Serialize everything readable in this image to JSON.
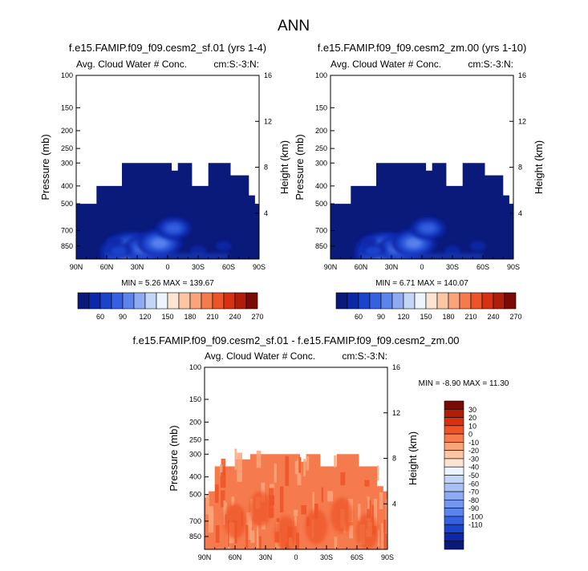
{
  "figure_title": "ANN",
  "colors": {
    "seq": [
      "#0a1a7a",
      "#0c27a8",
      "#1a44cc",
      "#3560e0",
      "#5c84ec",
      "#8eaaf2",
      "#c4d6f8",
      "#edf4fc",
      "#fde4d2",
      "#fcc6a2",
      "#faa47a",
      "#f57a4e",
      "#ee5428",
      "#d83010",
      "#b01e0a",
      "#7a0a05"
    ],
    "diff": [
      "#7a0a05",
      "#b01e0a",
      "#d83010",
      "#ee5428",
      "#f57a4e",
      "#faa47a",
      "#fcc6a2",
      "#fde4d2",
      "#edf4fc",
      "#c4d6f8",
      "#a8c0f4",
      "#8eaaf2",
      "#7596ee",
      "#5c84ec",
      "#3560e0",
      "#1a44cc",
      "#0c27a8",
      "#0a1a7a"
    ]
  },
  "chart_data": [
    {
      "type": "heatmap",
      "title": "f.e15.FAMIP.f09_f09.cesm2_sf.01 (yrs 1-4)",
      "left_string": "Avg. Cloud Water # Conc.",
      "right_string": "cm:S:-3:N:",
      "xlabel": "",
      "ylabel": "Pressure (mb)",
      "ylabel_right": "Height (km)",
      "x_ticks": [
        "90N",
        "60N",
        "30N",
        "0",
        "30S",
        "60S",
        "90S"
      ],
      "x_range": [
        90,
        -90
      ],
      "y_ticks": [
        100,
        150,
        200,
        250,
        300,
        400,
        500,
        700,
        850
      ],
      "y_range": [
        100,
        1000
      ],
      "y_scale": "log",
      "y_right_ticks": [
        4,
        8,
        12,
        16
      ],
      "stats": "MIN =   5.26   MAX = 139.67",
      "colorbar_labels": [
        "60",
        "90",
        "120",
        "150",
        "180",
        "210",
        "240",
        "270"
      ],
      "domain_outline": [
        [
          90,
          500
        ],
        [
          70,
          500
        ],
        [
          70,
          400
        ],
        [
          45,
          400
        ],
        [
          45,
          300
        ],
        [
          -4,
          300
        ],
        [
          -4,
          330
        ],
        [
          -10,
          330
        ],
        [
          -10,
          300
        ],
        [
          -24,
          300
        ],
        [
          -24,
          400
        ],
        [
          -40,
          400
        ],
        [
          -40,
          300
        ],
        [
          -62,
          300
        ],
        [
          -62,
          350
        ],
        [
          -80,
          350
        ],
        [
          -80,
          450
        ],
        [
          -86,
          450
        ],
        [
          -86,
          500
        ],
        [
          -90,
          500
        ],
        [
          -90,
          1000
        ],
        [
          90,
          1000
        ]
      ],
      "features": [
        {
          "lat": 35,
          "p": 920,
          "value": 125
        },
        {
          "lat": 22,
          "p": 880,
          "value": 100
        },
        {
          "lat": 8,
          "p": 820,
          "value": 95
        },
        {
          "lat": 48,
          "p": 900,
          "value": 70
        },
        {
          "lat": 52,
          "p": 800,
          "value": 55
        },
        {
          "lat": -6,
          "p": 680,
          "value": 85
        },
        {
          "lat": -30,
          "p": 900,
          "value": 60
        },
        {
          "lat": -55,
          "p": 850,
          "value": 45
        }
      ]
    },
    {
      "type": "heatmap",
      "title": "f.e15.FAMIP.f09_f09.cesm2_zm.00 (yrs 1-10)",
      "left_string": "Avg. Cloud Water # Conc.",
      "right_string": "cm:S:-3:N:",
      "xlabel": "",
      "ylabel": "Pressure (mb)",
      "ylabel_right": "Height (km)",
      "x_ticks": [
        "90N",
        "60N",
        "30N",
        "0",
        "30S",
        "60S",
        "90S"
      ],
      "x_range": [
        90,
        -90
      ],
      "y_ticks": [
        100,
        150,
        200,
        250,
        300,
        400,
        500,
        700,
        850
      ],
      "y_range": [
        100,
        1000
      ],
      "y_scale": "log",
      "y_right_ticks": [
        4,
        8,
        12,
        16
      ],
      "stats": "MIN =   6.71   MAX = 140.07",
      "colorbar_labels": [
        "60",
        "90",
        "120",
        "150",
        "180",
        "210",
        "240",
        "270"
      ],
      "domain_outline": [
        [
          90,
          500
        ],
        [
          70,
          500
        ],
        [
          70,
          400
        ],
        [
          45,
          400
        ],
        [
          45,
          300
        ],
        [
          -4,
          300
        ],
        [
          -4,
          330
        ],
        [
          -10,
          330
        ],
        [
          -10,
          300
        ],
        [
          -24,
          300
        ],
        [
          -24,
          400
        ],
        [
          -40,
          400
        ],
        [
          -40,
          300
        ],
        [
          -62,
          300
        ],
        [
          -62,
          350
        ],
        [
          -80,
          350
        ],
        [
          -80,
          450
        ],
        [
          -86,
          450
        ],
        [
          -86,
          500
        ],
        [
          -90,
          500
        ],
        [
          -90,
          1000
        ],
        [
          90,
          1000
        ]
      ],
      "features": [
        {
          "lat": 35,
          "p": 920,
          "value": 125
        },
        {
          "lat": 22,
          "p": 880,
          "value": 100
        },
        {
          "lat": 8,
          "p": 820,
          "value": 95
        },
        {
          "lat": 48,
          "p": 900,
          "value": 70
        },
        {
          "lat": 52,
          "p": 800,
          "value": 55
        },
        {
          "lat": -6,
          "p": 680,
          "value": 85
        },
        {
          "lat": -30,
          "p": 900,
          "value": 60
        },
        {
          "lat": -55,
          "p": 850,
          "value": 45
        }
      ]
    },
    {
      "type": "heatmap",
      "title": "f.e15.FAMIP.f09_f09.cesm2_sf.01 - f.e15.FAMIP.f09_f09.cesm2_zm.00",
      "left_string": "Avg. Cloud Water # Conc.",
      "right_string": "cm:S:-3:N:",
      "xlabel": "",
      "ylabel": "Pressure (mb)",
      "ylabel_right": "Height (km)",
      "x_ticks": [
        "90N",
        "60N",
        "30N",
        "0",
        "30S",
        "60S",
        "90S"
      ],
      "x_range": [
        90,
        -90
      ],
      "y_ticks": [
        100,
        150,
        200,
        250,
        300,
        400,
        500,
        700,
        850
      ],
      "y_range": [
        100,
        1000
      ],
      "y_scale": "log",
      "y_right_ticks": [
        4,
        8,
        12,
        16
      ],
      "stats": "MIN =  -8.90   MAX =  11.30",
      "colorbar_labels": [
        "30",
        "20",
        "10",
        "0",
        "-10",
        "-20",
        "-30",
        "-40",
        "-50",
        "-60",
        "-70",
        "-80",
        "-90",
        "-100",
        "-110"
      ],
      "domain_outline": [
        [
          90,
          520
        ],
        [
          86,
          520
        ],
        [
          86,
          480
        ],
        [
          80,
          480
        ],
        [
          80,
          350
        ],
        [
          60,
          350
        ],
        [
          60,
          320
        ],
        [
          45,
          320
        ],
        [
          45,
          300
        ],
        [
          -4,
          300
        ],
        [
          -4,
          330
        ],
        [
          -10,
          330
        ],
        [
          -10,
          300
        ],
        [
          -24,
          300
        ],
        [
          -24,
          350
        ],
        [
          -40,
          350
        ],
        [
          -40,
          300
        ],
        [
          -62,
          300
        ],
        [
          -62,
          350
        ],
        [
          -80,
          350
        ],
        [
          -80,
          450
        ],
        [
          -86,
          450
        ],
        [
          -86,
          480
        ],
        [
          -90,
          480
        ],
        [
          -90,
          1000
        ],
        [
          90,
          1000
        ]
      ],
      "dominant_value": "0 to 10",
      "streaks": [
        {
          "lat": 60,
          "p": 700,
          "value": "10 to 20"
        },
        {
          "lat": 35,
          "p": 600,
          "value": "10 to 20"
        },
        {
          "lat": 10,
          "p": 820,
          "value": "10 to 20"
        },
        {
          "lat": -20,
          "p": 750,
          "value": "10 to 20"
        },
        {
          "lat": -45,
          "p": 650,
          "value": "10 to 20"
        },
        {
          "lat": -70,
          "p": 800,
          "value": "10 to 20"
        }
      ]
    }
  ]
}
